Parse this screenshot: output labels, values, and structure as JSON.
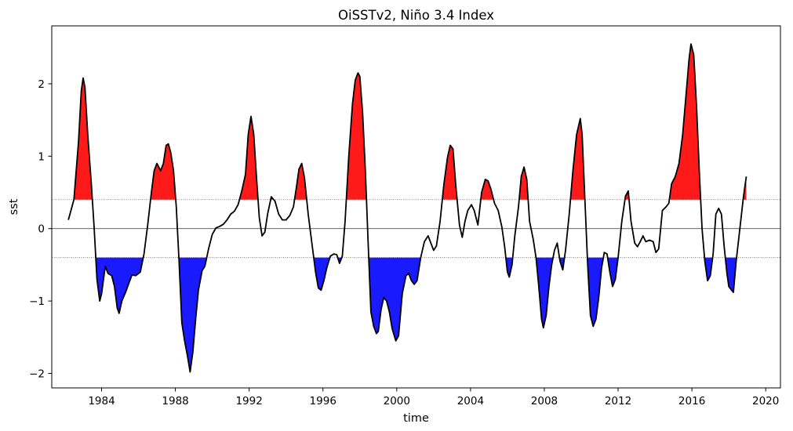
{
  "chart_data": {
    "type": "area",
    "title": "OiSSTv2, Niño 3.4 Index",
    "xlabel": "time",
    "ylabel": "sst",
    "xlim": [
      1981.3,
      2020.8
    ],
    "ylim": [
      -2.2,
      2.8
    ],
    "x_ticks": [
      1984,
      1988,
      1992,
      1996,
      2000,
      2004,
      2008,
      2012,
      2016,
      2020
    ],
    "y_ticks": [
      -2,
      -1,
      0,
      1,
      2
    ],
    "thresholds": [
      0.4,
      -0.4
    ],
    "colors": {
      "positive_fill": "#ff1a1a",
      "negative_fill": "#1a1aff",
      "line": "#000000",
      "threshold_line": "#666666",
      "zero_line": "#333333"
    },
    "series": [
      {
        "name": "Niño 3.4 Index",
        "points": [
          [
            1982.2,
            0.12
          ],
          [
            1982.5,
            0.4
          ],
          [
            1982.75,
            1.2
          ],
          [
            1982.9,
            1.9
          ],
          [
            1983.0,
            2.08
          ],
          [
            1983.1,
            1.95
          ],
          [
            1983.25,
            1.3
          ],
          [
            1983.45,
            0.6
          ],
          [
            1983.6,
            0.0
          ],
          [
            1983.75,
            -0.7
          ],
          [
            1983.9,
            -1.0
          ],
          [
            1984.0,
            -0.9
          ],
          [
            1984.2,
            -0.52
          ],
          [
            1984.35,
            -0.62
          ],
          [
            1984.55,
            -0.65
          ],
          [
            1984.7,
            -0.8
          ],
          [
            1984.85,
            -1.1
          ],
          [
            1984.95,
            -1.17
          ],
          [
            1985.1,
            -1.0
          ],
          [
            1985.3,
            -0.88
          ],
          [
            1985.5,
            -0.74
          ],
          [
            1985.65,
            -0.64
          ],
          [
            1985.85,
            -0.65
          ],
          [
            1986.1,
            -0.6
          ],
          [
            1986.3,
            -0.35
          ],
          [
            1986.5,
            0.05
          ],
          [
            1986.7,
            0.5
          ],
          [
            1986.85,
            0.8
          ],
          [
            1987.0,
            0.9
          ],
          [
            1987.2,
            0.8
          ],
          [
            1987.35,
            0.9
          ],
          [
            1987.5,
            1.15
          ],
          [
            1987.62,
            1.17
          ],
          [
            1987.75,
            1.05
          ],
          [
            1987.9,
            0.8
          ],
          [
            1988.05,
            0.3
          ],
          [
            1988.2,
            -0.45
          ],
          [
            1988.35,
            -1.3
          ],
          [
            1988.5,
            -1.55
          ],
          [
            1988.65,
            -1.75
          ],
          [
            1988.8,
            -1.98
          ],
          [
            1988.95,
            -1.7
          ],
          [
            1989.1,
            -1.25
          ],
          [
            1989.25,
            -0.85
          ],
          [
            1989.45,
            -0.58
          ],
          [
            1989.6,
            -0.52
          ],
          [
            1989.8,
            -0.28
          ],
          [
            1990.0,
            -0.08
          ],
          [
            1990.2,
            0.01
          ],
          [
            1990.4,
            0.03
          ],
          [
            1990.6,
            0.06
          ],
          [
            1990.8,
            0.12
          ],
          [
            1991.0,
            0.2
          ],
          [
            1991.2,
            0.24
          ],
          [
            1991.4,
            0.33
          ],
          [
            1991.6,
            0.52
          ],
          [
            1991.8,
            0.75
          ],
          [
            1991.95,
            1.3
          ],
          [
            1992.1,
            1.55
          ],
          [
            1992.25,
            1.3
          ],
          [
            1992.4,
            0.7
          ],
          [
            1992.55,
            0.15
          ],
          [
            1992.7,
            -0.1
          ],
          [
            1992.85,
            -0.05
          ],
          [
            1993.0,
            0.2
          ],
          [
            1993.2,
            0.44
          ],
          [
            1993.4,
            0.38
          ],
          [
            1993.6,
            0.2
          ],
          [
            1993.8,
            0.12
          ],
          [
            1994.0,
            0.12
          ],
          [
            1994.2,
            0.18
          ],
          [
            1994.4,
            0.3
          ],
          [
            1994.55,
            0.55
          ],
          [
            1994.7,
            0.82
          ],
          [
            1994.85,
            0.9
          ],
          [
            1995.0,
            0.7
          ],
          [
            1995.2,
            0.2
          ],
          [
            1995.4,
            -0.2
          ],
          [
            1995.6,
            -0.6
          ],
          [
            1995.75,
            -0.82
          ],
          [
            1995.9,
            -0.85
          ],
          [
            1996.05,
            -0.72
          ],
          [
            1996.2,
            -0.55
          ],
          [
            1996.4,
            -0.38
          ],
          [
            1996.6,
            -0.35
          ],
          [
            1996.75,
            -0.36
          ],
          [
            1996.9,
            -0.48
          ],
          [
            1997.05,
            -0.38
          ],
          [
            1997.2,
            0.1
          ],
          [
            1997.4,
            1.0
          ],
          [
            1997.6,
            1.72
          ],
          [
            1997.75,
            2.05
          ],
          [
            1997.9,
            2.15
          ],
          [
            1998.0,
            2.1
          ],
          [
            1998.15,
            1.6
          ],
          [
            1998.3,
            0.8
          ],
          [
            1998.45,
            -0.2
          ],
          [
            1998.6,
            -1.15
          ],
          [
            1998.75,
            -1.35
          ],
          [
            1998.9,
            -1.45
          ],
          [
            1999.0,
            -1.42
          ],
          [
            1999.15,
            -1.12
          ],
          [
            1999.3,
            -0.95
          ],
          [
            1999.45,
            -1.0
          ],
          [
            1999.6,
            -1.15
          ],
          [
            1999.75,
            -1.38
          ],
          [
            1999.95,
            -1.55
          ],
          [
            2000.1,
            -1.48
          ],
          [
            2000.3,
            -0.9
          ],
          [
            2000.5,
            -0.65
          ],
          [
            2000.65,
            -0.62
          ],
          [
            2000.8,
            -0.72
          ],
          [
            2000.95,
            -0.77
          ],
          [
            2001.1,
            -0.72
          ],
          [
            2001.3,
            -0.4
          ],
          [
            2001.5,
            -0.18
          ],
          [
            2001.7,
            -0.1
          ],
          [
            2001.85,
            -0.2
          ],
          [
            2002.0,
            -0.3
          ],
          [
            2002.15,
            -0.24
          ],
          [
            2002.35,
            0.1
          ],
          [
            2002.55,
            0.6
          ],
          [
            2002.75,
            0.98
          ],
          [
            2002.9,
            1.15
          ],
          [
            2003.05,
            1.1
          ],
          [
            2003.2,
            0.6
          ],
          [
            2003.4,
            0.05
          ],
          [
            2003.55,
            -0.12
          ],
          [
            2003.7,
            0.1
          ],
          [
            2003.85,
            0.25
          ],
          [
            2004.05,
            0.33
          ],
          [
            2004.2,
            0.25
          ],
          [
            2004.4,
            0.05
          ],
          [
            2004.6,
            0.5
          ],
          [
            2004.8,
            0.68
          ],
          [
            2004.95,
            0.66
          ],
          [
            2005.1,
            0.55
          ],
          [
            2005.3,
            0.35
          ],
          [
            2005.5,
            0.25
          ],
          [
            2005.7,
            0.02
          ],
          [
            2005.85,
            -0.25
          ],
          [
            2006.0,
            -0.6
          ],
          [
            2006.1,
            -0.67
          ],
          [
            2006.25,
            -0.5
          ],
          [
            2006.4,
            -0.1
          ],
          [
            2006.6,
            0.3
          ],
          [
            2006.75,
            0.72
          ],
          [
            2006.9,
            0.85
          ],
          [
            2007.05,
            0.68
          ],
          [
            2007.2,
            0.1
          ],
          [
            2007.4,
            -0.15
          ],
          [
            2007.55,
            -0.4
          ],
          [
            2007.7,
            -0.8
          ],
          [
            2007.85,
            -1.25
          ],
          [
            2007.95,
            -1.37
          ],
          [
            2008.1,
            -1.2
          ],
          [
            2008.25,
            -0.8
          ],
          [
            2008.4,
            -0.5
          ],
          [
            2008.55,
            -0.3
          ],
          [
            2008.7,
            -0.2
          ],
          [
            2008.85,
            -0.45
          ],
          [
            2009.0,
            -0.57
          ],
          [
            2009.15,
            -0.3
          ],
          [
            2009.35,
            0.2
          ],
          [
            2009.55,
            0.8
          ],
          [
            2009.75,
            1.3
          ],
          [
            2009.95,
            1.52
          ],
          [
            2010.05,
            1.3
          ],
          [
            2010.2,
            0.4
          ],
          [
            2010.35,
            -0.5
          ],
          [
            2010.5,
            -1.2
          ],
          [
            2010.65,
            -1.35
          ],
          [
            2010.8,
            -1.25
          ],
          [
            2010.95,
            -0.95
          ],
          [
            2011.1,
            -0.55
          ],
          [
            2011.25,
            -0.33
          ],
          [
            2011.4,
            -0.35
          ],
          [
            2011.55,
            -0.6
          ],
          [
            2011.7,
            -0.8
          ],
          [
            2011.85,
            -0.7
          ],
          [
            2012.0,
            -0.4
          ],
          [
            2012.2,
            0.1
          ],
          [
            2012.4,
            0.45
          ],
          [
            2012.55,
            0.52
          ],
          [
            2012.7,
            0.1
          ],
          [
            2012.9,
            -0.2
          ],
          [
            2013.05,
            -0.25
          ],
          [
            2013.2,
            -0.18
          ],
          [
            2013.35,
            -0.1
          ],
          [
            2013.5,
            -0.18
          ],
          [
            2013.7,
            -0.16
          ],
          [
            2013.9,
            -0.18
          ],
          [
            2014.05,
            -0.33
          ],
          [
            2014.2,
            -0.28
          ],
          [
            2014.4,
            0.25
          ],
          [
            2014.6,
            0.3
          ],
          [
            2014.75,
            0.35
          ],
          [
            2014.9,
            0.62
          ],
          [
            2015.1,
            0.72
          ],
          [
            2015.3,
            0.9
          ],
          [
            2015.5,
            1.3
          ],
          [
            2015.7,
            1.9
          ],
          [
            2015.85,
            2.35
          ],
          [
            2015.95,
            2.55
          ],
          [
            2016.1,
            2.4
          ],
          [
            2016.25,
            1.7
          ],
          [
            2016.4,
            0.8
          ],
          [
            2016.55,
            0.0
          ],
          [
            2016.7,
            -0.45
          ],
          [
            2016.85,
            -0.72
          ],
          [
            2017.0,
            -0.65
          ],
          [
            2017.15,
            -0.35
          ],
          [
            2017.3,
            0.2
          ],
          [
            2017.45,
            0.28
          ],
          [
            2017.6,
            0.2
          ],
          [
            2017.75,
            -0.25
          ],
          [
            2017.9,
            -0.62
          ],
          [
            2018.0,
            -0.8
          ],
          [
            2018.15,
            -0.85
          ],
          [
            2018.25,
            -0.88
          ],
          [
            2018.4,
            -0.45
          ],
          [
            2018.6,
            0.0
          ],
          [
            2018.8,
            0.45
          ],
          [
            2018.95,
            0.72
          ]
        ]
      }
    ]
  }
}
